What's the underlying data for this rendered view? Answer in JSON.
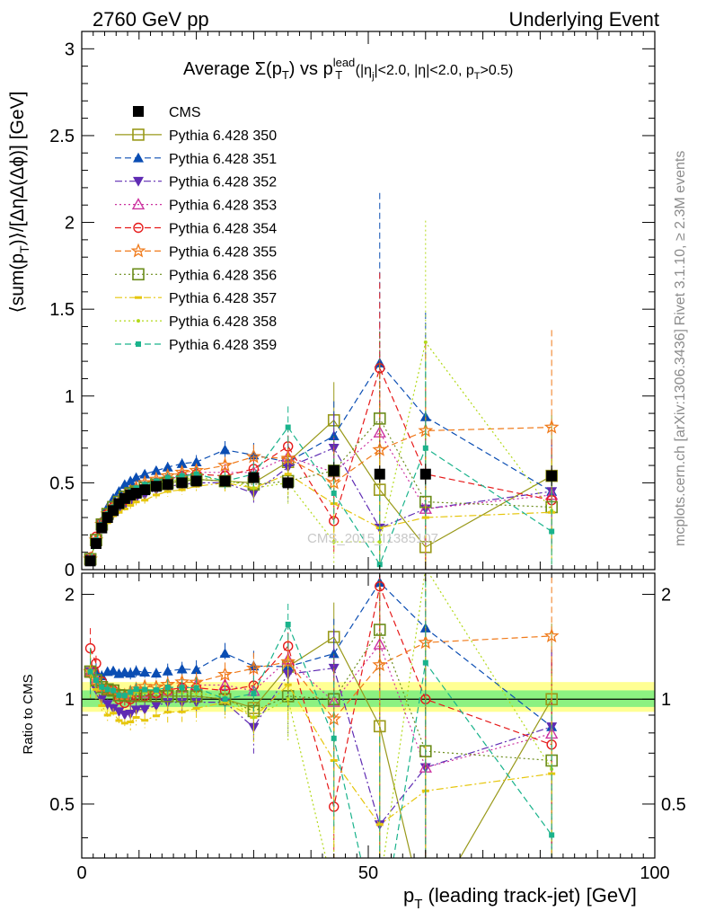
{
  "header": {
    "left": "2760 GeV pp",
    "right": "Underlying Event",
    "plot_title_prefix": "Average ",
    "plot_title_sigma": "Σ(p",
    "plot_title_sub_T": "T",
    "plot_title_mid": ") vs p",
    "plot_title_sup_lead": "lead",
    "plot_title_rest": " (|η",
    "plot_title_sub_j": "j",
    "plot_title_end": "|<2.0, |η|<2.0, p",
    "plot_title_sub_T2": "T",
    "plot_title_tail": ">0.5)"
  },
  "side_labels": {
    "rivet": "Rivet 3.1.10, ≥ 2.3M events",
    "mcplots": "mcplots.cern.ch [arXiv:1306.3436]"
  },
  "watermark": "CMS_2015_I1385107",
  "axes": {
    "ylabel_main": "⟨sum(p",
    "ylabel_main_sub": "T",
    "ylabel_main_rest": ")⟩/[ΔηΔ(Δϕ)] [GeV]",
    "ylabel_ratio": "Ratio to CMS",
    "xlabel": "p",
    "xlabel_sub": "T",
    "xlabel_rest": " (leading track-jet) [GeV]",
    "x_ticks": [
      "0",
      "50",
      "100"
    ],
    "y_ticks_main": [
      "0",
      "0.5",
      "1",
      "1.5",
      "2",
      "2.5",
      "3"
    ],
    "y_ticks_ratio": [
      "0.5",
      "1",
      "2"
    ]
  },
  "chart_data": {
    "type": "scatter",
    "title": "Average Σ(pT) vs pT lead (|ηj|<2.0, |η|<2.0, pT>0.5)",
    "xlabel": "pT (leading track-jet) [GeV]",
    "ylabel": "⟨sum(pT)⟩/[ΔηΔ(Δϕ)] [GeV]",
    "xlim": [
      0,
      100
    ],
    "ylim": [
      0,
      3.1
    ],
    "ratio_ylim": [
      0.35,
      2.3
    ],
    "legend_position": "top-left",
    "x": [
      1.5,
      2.5,
      3.5,
      4.5,
      5.5,
      6.5,
      7.5,
      8.5,
      9.5,
      11,
      13,
      15,
      17.5,
      20,
      25,
      30,
      36,
      44,
      52,
      60,
      82
    ],
    "cms": {
      "name": "CMS",
      "values": [
        0.05,
        0.15,
        0.24,
        0.3,
        0.34,
        0.38,
        0.41,
        0.43,
        0.44,
        0.46,
        0.48,
        0.49,
        0.5,
        0.51,
        0.51,
        0.53,
        0.5,
        0.57,
        0.55,
        0.55,
        0.54
      ],
      "errors": [
        0.01,
        0.01,
        0.01,
        0.01,
        0.01,
        0.01,
        0.01,
        0.01,
        0.01,
        0.01,
        0.01,
        0.01,
        0.01,
        0.02,
        0.02,
        0.03,
        0.04,
        0.05,
        0.05,
        0.06,
        0.06
      ]
    },
    "series": [
      {
        "name": "Pythia 6.428 350",
        "color": "#99991a",
        "style": "solid",
        "marker": "square-open",
        "values": [
          0.06,
          0.17,
          0.26,
          0.32,
          0.36,
          0.39,
          0.42,
          0.44,
          0.45,
          0.47,
          0.49,
          0.5,
          0.51,
          0.52,
          0.51,
          0.5,
          0.62,
          0.86,
          0.46,
          0.13,
          0.54
        ],
        "errors": [
          0.01,
          0.01,
          0.01,
          0.01,
          0.01,
          0.01,
          0.01,
          0.02,
          0.02,
          0.02,
          0.02,
          0.03,
          0.03,
          0.04,
          0.05,
          0.07,
          0.12,
          0.22,
          0.5,
          0.6,
          0.35
        ]
      },
      {
        "name": "Pythia 6.428 351",
        "color": "#0a4db3",
        "style": "dashed",
        "marker": "triangle-up",
        "values": [
          0.06,
          0.18,
          0.28,
          0.36,
          0.41,
          0.45,
          0.49,
          0.51,
          0.53,
          0.55,
          0.57,
          0.59,
          0.61,
          0.62,
          0.69,
          0.66,
          0.62,
          0.77,
          1.19,
          0.88,
          0.45
        ],
        "errors": [
          0.01,
          0.01,
          0.01,
          0.01,
          0.01,
          0.01,
          0.01,
          0.02,
          0.02,
          0.02,
          0.02,
          0.03,
          0.03,
          0.04,
          0.05,
          0.07,
          0.12,
          0.2,
          0.98,
          0.6,
          0.3
        ]
      },
      {
        "name": "Pythia 6.428 352",
        "color": "#5f2bb3",
        "style": "dashdot",
        "marker": "triangle-down",
        "values": [
          0.06,
          0.16,
          0.24,
          0.29,
          0.32,
          0.35,
          0.37,
          0.39,
          0.41,
          0.43,
          0.46,
          0.48,
          0.49,
          0.5,
          0.5,
          0.44,
          0.59,
          0.7,
          0.24,
          0.35,
          0.45
        ],
        "errors": [
          0.01,
          0.01,
          0.01,
          0.01,
          0.01,
          0.01,
          0.01,
          0.02,
          0.02,
          0.02,
          0.02,
          0.03,
          0.03,
          0.04,
          0.05,
          0.07,
          0.12,
          0.2,
          0.4,
          0.5,
          0.3
        ]
      },
      {
        "name": "Pythia 6.428 353",
        "color": "#cc33a0",
        "style": "dotted",
        "marker": "triangle-open",
        "values": [
          0.06,
          0.17,
          0.26,
          0.32,
          0.36,
          0.39,
          0.42,
          0.44,
          0.46,
          0.48,
          0.5,
          0.52,
          0.54,
          0.56,
          0.56,
          0.56,
          0.65,
          0.56,
          0.79,
          0.35,
          0.43
        ],
        "errors": [
          0.01,
          0.01,
          0.01,
          0.01,
          0.01,
          0.01,
          0.01,
          0.02,
          0.02,
          0.02,
          0.02,
          0.03,
          0.03,
          0.04,
          0.05,
          0.07,
          0.12,
          0.2,
          0.6,
          0.5,
          0.3
        ]
      },
      {
        "name": "Pythia 6.428 354",
        "color": "#e61a1a",
        "style": "dashed",
        "marker": "circle-open",
        "values": [
          0.07,
          0.19,
          0.27,
          0.32,
          0.36,
          0.38,
          0.4,
          0.43,
          0.45,
          0.47,
          0.5,
          0.52,
          0.54,
          0.55,
          0.54,
          0.58,
          0.71,
          0.28,
          1.16,
          0.55,
          0.4
        ],
        "errors": [
          0.01,
          0.01,
          0.01,
          0.01,
          0.01,
          0.01,
          0.01,
          0.02,
          0.02,
          0.02,
          0.02,
          0.03,
          0.03,
          0.04,
          0.05,
          0.07,
          0.12,
          0.2,
          0.55,
          0.5,
          0.3
        ]
      },
      {
        "name": "Pythia 6.428 355",
        "color": "#f07a1a",
        "style": "dashed",
        "marker": "star",
        "values": [
          0.06,
          0.17,
          0.26,
          0.32,
          0.36,
          0.39,
          0.42,
          0.45,
          0.47,
          0.5,
          0.52,
          0.54,
          0.56,
          0.57,
          0.6,
          0.65,
          0.64,
          0.5,
          0.69,
          0.8,
          0.82
        ],
        "errors": [
          0.01,
          0.01,
          0.01,
          0.01,
          0.01,
          0.01,
          0.01,
          0.02,
          0.02,
          0.02,
          0.02,
          0.03,
          0.03,
          0.04,
          0.05,
          0.07,
          0.12,
          0.2,
          0.5,
          0.5,
          0.56
        ]
      },
      {
        "name": "Pythia 6.428 356",
        "color": "#6b8c1a",
        "style": "dotted",
        "marker": "square-open",
        "values": [
          0.06,
          0.17,
          0.26,
          0.32,
          0.36,
          0.39,
          0.42,
          0.44,
          0.45,
          0.47,
          0.49,
          0.5,
          0.51,
          0.52,
          0.51,
          0.49,
          0.51,
          0.57,
          0.87,
          0.39,
          0.36
        ],
        "errors": [
          0.01,
          0.01,
          0.01,
          0.01,
          0.01,
          0.01,
          0.01,
          0.02,
          0.02,
          0.02,
          0.02,
          0.03,
          0.03,
          0.04,
          0.05,
          0.07,
          0.12,
          0.2,
          0.5,
          0.5,
          0.3
        ]
      },
      {
        "name": "Pythia 6.428 357",
        "color": "#e6c60d",
        "style": "dashdot",
        "marker": "dash",
        "values": [
          0.06,
          0.16,
          0.23,
          0.27,
          0.31,
          0.33,
          0.35,
          0.37,
          0.39,
          0.4,
          0.43,
          0.45,
          0.46,
          0.48,
          0.5,
          0.47,
          0.55,
          0.38,
          0.24,
          0.3,
          0.33
        ],
        "errors": [
          0.01,
          0.01,
          0.01,
          0.01,
          0.01,
          0.01,
          0.01,
          0.02,
          0.02,
          0.02,
          0.02,
          0.03,
          0.03,
          0.04,
          0.05,
          0.07,
          0.12,
          0.2,
          0.4,
          0.5,
          0.3
        ]
      },
      {
        "name": "Pythia 6.428 358",
        "color": "#b3d91a",
        "style": "dotted",
        "marker": "dot",
        "values": [
          0.06,
          0.17,
          0.26,
          0.32,
          0.36,
          0.39,
          0.42,
          0.44,
          0.46,
          0.48,
          0.5,
          0.51,
          0.52,
          0.53,
          0.52,
          0.47,
          0.5,
          0.16,
          0.16,
          1.31,
          0.34
        ],
        "errors": [
          0.01,
          0.01,
          0.01,
          0.01,
          0.01,
          0.01,
          0.01,
          0.02,
          0.02,
          0.02,
          0.02,
          0.03,
          0.03,
          0.04,
          0.05,
          0.07,
          0.12,
          0.2,
          0.4,
          0.7,
          0.3
        ]
      },
      {
        "name": "Pythia 6.428 359",
        "color": "#1ab38c",
        "style": "dashed",
        "marker": "square-small",
        "values": [
          0.06,
          0.17,
          0.26,
          0.32,
          0.36,
          0.39,
          0.42,
          0.45,
          0.47,
          0.49,
          0.51,
          0.53,
          0.54,
          0.55,
          0.51,
          0.55,
          0.82,
          0.44,
          0.03,
          0.7,
          0.22
        ],
        "errors": [
          0.01,
          0.01,
          0.01,
          0.01,
          0.01,
          0.01,
          0.01,
          0.02,
          0.02,
          0.02,
          0.02,
          0.03,
          0.03,
          0.04,
          0.05,
          0.07,
          0.12,
          0.2,
          0.4,
          0.5,
          0.3
        ]
      }
    ]
  }
}
